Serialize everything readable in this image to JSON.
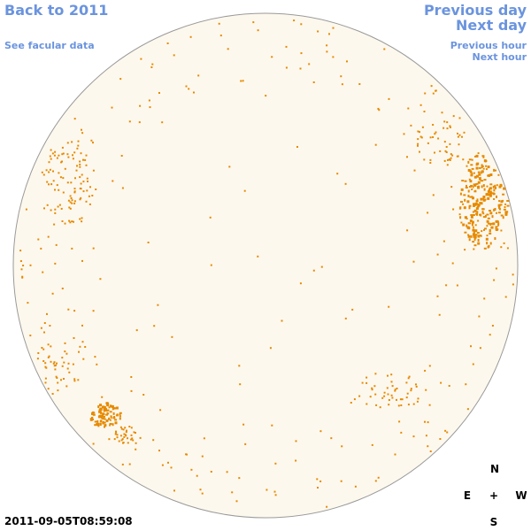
{
  "nav": {
    "back_label": "Back to 2011",
    "facular_label": "See facular data",
    "prev_day_label": "Previous day",
    "next_day_label": "Next day",
    "prev_hour_label": "Previous hour",
    "next_hour_label": "Next hour"
  },
  "timestamp": "2011-09-05T08:59:08",
  "compass": {
    "north": "N",
    "east": "E",
    "center": "+",
    "west": "W",
    "south": "S"
  },
  "colors": {
    "disk_fill": "#fdf8ee",
    "disk_stroke": "#9a9a9a",
    "spot_color": "#e68a00",
    "link_color": "#6b94de"
  },
  "image": {
    "type": "solar-disk-magnetogram",
    "spot_regions": [
      {
        "name": "west-northern-cluster",
        "density": "high"
      },
      {
        "name": "east-northern-limb",
        "density": "medium"
      },
      {
        "name": "east-southern-cluster",
        "density": "high"
      },
      {
        "name": "west-southern-scatter",
        "density": "low"
      },
      {
        "name": "limb-scatter",
        "density": "low"
      }
    ]
  }
}
